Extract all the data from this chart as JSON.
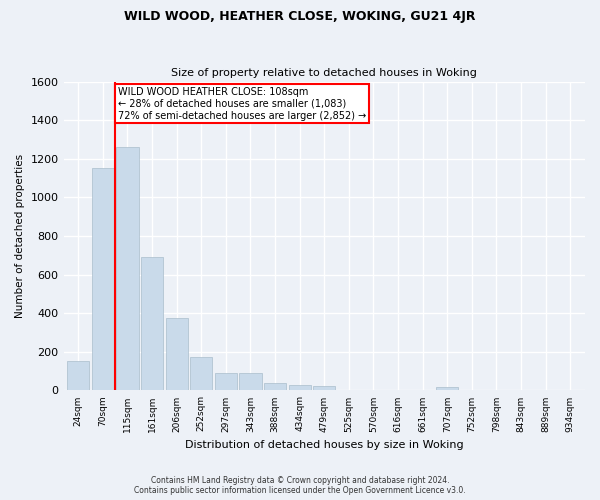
{
  "title": "WILD WOOD, HEATHER CLOSE, WOKING, GU21 4JR",
  "subtitle": "Size of property relative to detached houses in Woking",
  "xlabel": "Distribution of detached houses by size in Woking",
  "ylabel": "Number of detached properties",
  "bar_labels": [
    "24sqm",
    "70sqm",
    "115sqm",
    "161sqm",
    "206sqm",
    "252sqm",
    "297sqm",
    "343sqm",
    "388sqm",
    "434sqm",
    "479sqm",
    "525sqm",
    "570sqm",
    "616sqm",
    "661sqm",
    "707sqm",
    "752sqm",
    "798sqm",
    "843sqm",
    "889sqm",
    "934sqm"
  ],
  "bar_values": [
    150,
    1150,
    1260,
    690,
    375,
    175,
    90,
    90,
    40,
    30,
    25,
    0,
    0,
    0,
    0,
    20,
    0,
    0,
    0,
    0,
    0
  ],
  "bar_color": "#c9daea",
  "bar_edgecolor": "#aabdcc",
  "property_line_color": "red",
  "annotation_text": "WILD WOOD HEATHER CLOSE: 108sqm\n← 28% of detached houses are smaller (1,083)\n72% of semi-detached houses are larger (2,852) →",
  "annotation_box_color": "white",
  "annotation_box_edgecolor": "red",
  "ylim": [
    0,
    1600
  ],
  "yticks": [
    0,
    200,
    400,
    600,
    800,
    1000,
    1200,
    1400,
    1600
  ],
  "footer": "Contains HM Land Registry data © Crown copyright and database right 2024.\nContains public sector information licensed under the Open Government Licence v3.0.",
  "background_color": "#edf1f7",
  "grid_color": "#ffffff"
}
